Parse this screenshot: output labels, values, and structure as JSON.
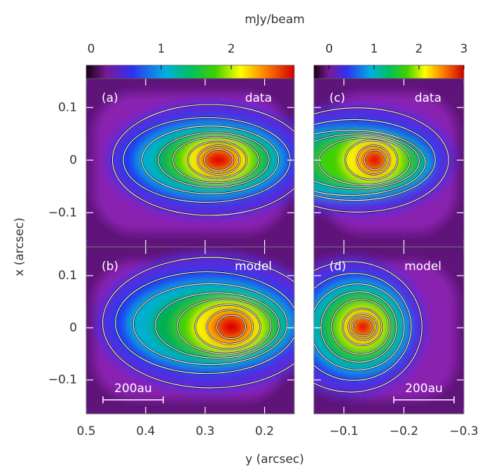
{
  "chart_data": {
    "type": "image",
    "colorbar_label": "mJy/beam",
    "xlabel": "y (arcsec)",
    "ylabel": "x (arcsec)",
    "yticks": [
      0.1,
      0,
      {
        "value": -0.1,
        "label": "−0.1"
      }
    ],
    "ylim": [
      -0.165,
      0.155
    ],
    "columns": [
      {
        "xlim": [
          0.5,
          0.15
        ],
        "xticks": [
          0.5,
          0.4,
          0.3,
          0.2
        ],
        "colorbar_lim": [
          -0.07,
          2.9
        ],
        "colorbar_ticks": [
          0,
          1,
          2
        ]
      },
      {
        "xlim": [
          -0.05,
          -0.3
        ],
        "xticks": [
          {
            "value": -0.1,
            "label": "−0.1"
          },
          {
            "value": -0.2,
            "label": "−0.2"
          },
          {
            "value": -0.3,
            "label": "−0.3"
          }
        ],
        "colorbar_lim": [
          -0.34,
          3
        ],
        "colorbar_ticks": [
          0,
          1,
          2,
          3
        ]
      }
    ],
    "panels": [
      {
        "label": "(a)",
        "tag": "data"
      },
      {
        "label": "(b)",
        "tag": "model",
        "scale_bar": "200au"
      },
      {
        "label": "(c)",
        "tag": "data"
      },
      {
        "label": "(d)",
        "tag": "model",
        "scale_bar": "200au"
      }
    ]
  }
}
